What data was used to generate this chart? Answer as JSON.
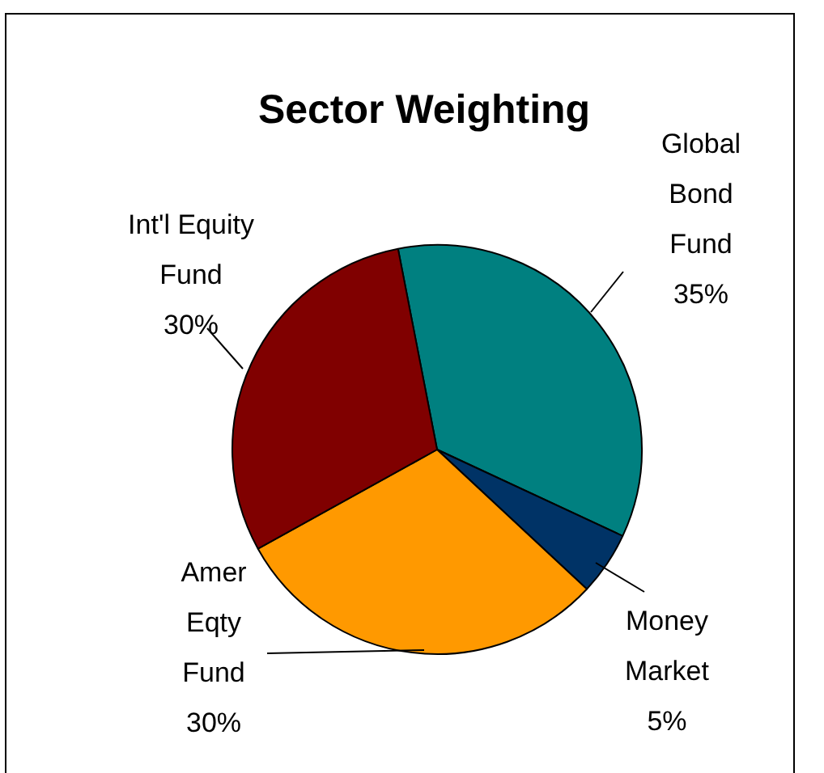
{
  "chart_data": {
    "type": "pie",
    "title": "Sector Weighting",
    "categories": [
      "Global Bond Fund",
      "Money Market",
      "Amer Eqty Fund",
      "Int'l Equity Fund"
    ],
    "values": [
      35,
      5,
      30,
      30
    ],
    "colors": [
      "#008080",
      "#003366",
      "#ff9900",
      "#800000"
    ],
    "value_labels": [
      "35%",
      "5%",
      "30%",
      "30%"
    ],
    "legend": false
  }
}
